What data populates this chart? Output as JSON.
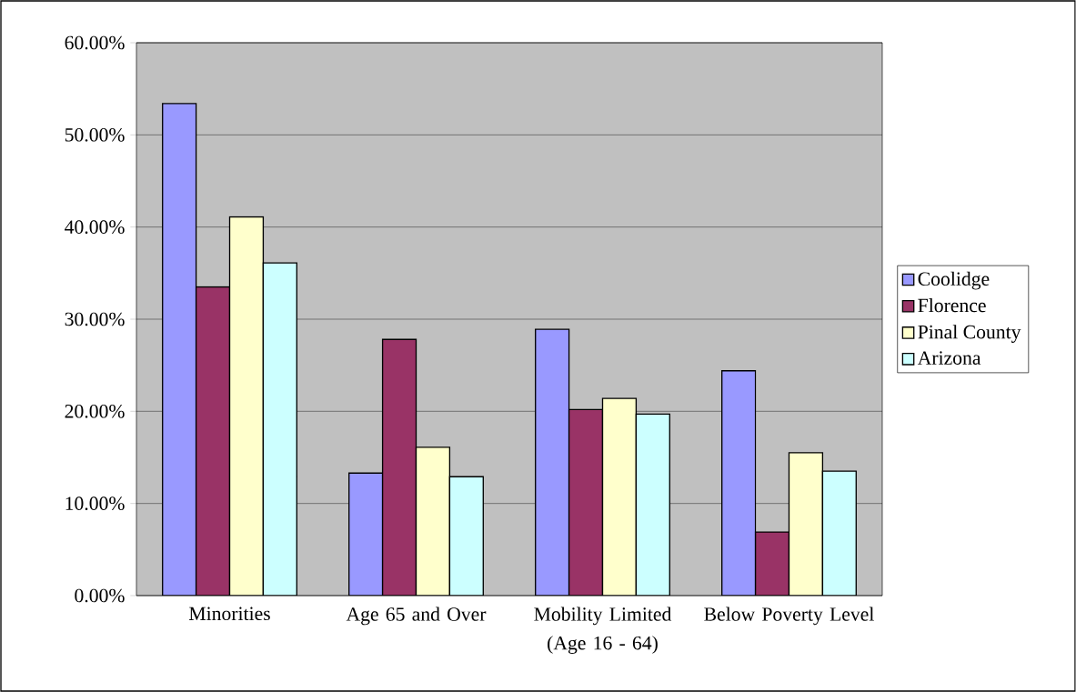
{
  "chart_data": {
    "type": "bar",
    "categories": [
      "Minorities",
      "Age 65 and Over",
      "Mobility Limited (Age 16 - 64)",
      "Below Poverty Level"
    ],
    "series": [
      {
        "name": "Coolidge",
        "color": "#9999ff",
        "values": [
          53.4,
          13.3,
          28.9,
          24.4
        ]
      },
      {
        "name": "Florence",
        "color": "#993366",
        "values": [
          33.5,
          27.8,
          20.2,
          6.9
        ]
      },
      {
        "name": "Pinal County",
        "color": "#ffffcc",
        "values": [
          41.1,
          16.1,
          21.4,
          15.5
        ]
      },
      {
        "name": "Arizona",
        "color": "#ccffff",
        "values": [
          36.1,
          12.9,
          19.7,
          13.5
        ]
      }
    ],
    "ylim": [
      0,
      60
    ],
    "yticks": [
      {
        "value": 0,
        "label": "0.00%"
      },
      {
        "value": 10,
        "label": "10.00%"
      },
      {
        "value": 20,
        "label": "20.00%"
      },
      {
        "value": 30,
        "label": "30.00%"
      },
      {
        "value": 40,
        "label": "40.00%"
      },
      {
        "value": 50,
        "label": "50.00%"
      },
      {
        "value": 60,
        "label": "60.00%"
      }
    ],
    "grid": "y",
    "legend": "right"
  }
}
